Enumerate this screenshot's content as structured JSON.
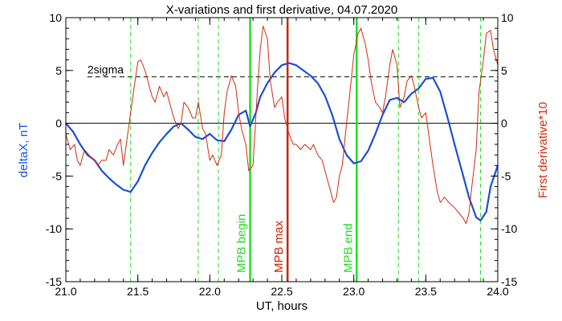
{
  "chart_data": {
    "type": "line",
    "title": "X-variations and first derivative, 04.07.2020",
    "xlabel": "UT, hours",
    "ylabel_left": "deltaX, nT",
    "ylabel_right": "First derivative*10",
    "xlim": [
      21.0,
      24.0
    ],
    "ylim": [
      -15,
      10
    ],
    "x_ticks": [
      21.0,
      21.5,
      22.0,
      22.5,
      23.0,
      23.5,
      24.0
    ],
    "x_tick_labels": [
      "21.0",
      "21.5",
      "22.0",
      "22.5",
      "23.0",
      "23.5",
      "24.0"
    ],
    "y_ticks": [
      -15,
      -10,
      -5,
      0,
      5,
      10
    ],
    "y_tick_labels": [
      "-15",
      "-10",
      "-5",
      "0",
      "5",
      "10"
    ],
    "grid": false,
    "colors": {
      "deltaX": "#1a4fd6",
      "derivative": "#d42a0c",
      "mpb_boundary": "#22dd22",
      "mpb_max": "#cc2200",
      "axis_text": "#000000"
    },
    "sigma_line": {
      "label": "2sigma",
      "y": 4.4
    },
    "zero_line": {
      "y": 0
    },
    "dashed_verticals": {
      "x": [
        21.45,
        21.92,
        22.06,
        23.31,
        23.45,
        23.88
      ],
      "color": "#22dd22"
    },
    "event_lines": [
      {
        "x": 22.28,
        "label": "MPB begin",
        "color": "#22dd22"
      },
      {
        "x": 22.54,
        "label": "MPB max",
        "color": "#cc2200"
      },
      {
        "x": 23.02,
        "label": "MPB end",
        "color": "#22dd22"
      }
    ],
    "series": [
      {
        "key": "deltaX",
        "axis": "left",
        "x": [
          21.0,
          21.05,
          21.1,
          21.15,
          21.2,
          21.25,
          21.3,
          21.35,
          21.4,
          21.45,
          21.5,
          21.55,
          21.6,
          21.65,
          21.7,
          21.75,
          21.8,
          21.85,
          21.9,
          21.95,
          22.0,
          22.05,
          22.1,
          22.15,
          22.2,
          22.25,
          22.28,
          22.32,
          22.35,
          22.4,
          22.45,
          22.5,
          22.55,
          22.6,
          22.65,
          22.7,
          22.75,
          22.8,
          22.85,
          22.9,
          22.95,
          23.0,
          23.05,
          23.1,
          23.15,
          23.2,
          23.25,
          23.3,
          23.35,
          23.4,
          23.45,
          23.5,
          23.55,
          23.6,
          23.65,
          23.7,
          23.75,
          23.8,
          23.85,
          23.88,
          23.92,
          23.95,
          24.0
        ],
        "y": [
          0.0,
          -0.8,
          -2.0,
          -3.0,
          -3.5,
          -4.5,
          -5.2,
          -5.8,
          -6.3,
          -6.5,
          -5.5,
          -4.0,
          -2.8,
          -1.8,
          -1.0,
          -0.3,
          0.0,
          -0.6,
          -1.3,
          -1.5,
          -1.0,
          -1.6,
          -1.7,
          -0.6,
          0.8,
          1.2,
          -0.3,
          1.0,
          2.5,
          3.8,
          4.8,
          5.5,
          5.7,
          5.5,
          5.0,
          4.5,
          3.8,
          2.6,
          0.8,
          -1.5,
          -3.0,
          -3.8,
          -3.6,
          -2.6,
          -1.0,
          0.8,
          2.2,
          2.4,
          2.0,
          2.8,
          3.3,
          4.2,
          4.3,
          3.0,
          0.6,
          -2.0,
          -4.5,
          -7.0,
          -8.9,
          -9.2,
          -8.4,
          -6.0,
          -4.0
        ]
      },
      {
        "key": "derivative",
        "axis": "right",
        "x": [
          21.0,
          21.03,
          21.06,
          21.08,
          21.1,
          21.13,
          21.16,
          21.2,
          21.22,
          21.25,
          21.28,
          21.3,
          21.33,
          21.36,
          21.38,
          21.4,
          21.42,
          21.44,
          21.47,
          21.5,
          21.52,
          21.55,
          21.58,
          21.6,
          21.62,
          21.65,
          21.68,
          21.7,
          21.72,
          21.75,
          21.78,
          21.8,
          21.82,
          21.85,
          21.88,
          21.9,
          21.92,
          21.95,
          21.97,
          22.0,
          22.02,
          22.05,
          22.08,
          22.1,
          22.12,
          22.15,
          22.18,
          22.2,
          22.22,
          22.25,
          22.27,
          22.3,
          22.33,
          22.35,
          22.37,
          22.4,
          22.42,
          22.45,
          22.47,
          22.5,
          22.52,
          22.55,
          22.58,
          22.6,
          22.63,
          22.66,
          22.7,
          22.72,
          22.75,
          22.78,
          22.8,
          22.83,
          22.86,
          22.88,
          22.9,
          22.92,
          22.95,
          22.97,
          23.0,
          23.03,
          23.05,
          23.08,
          23.1,
          23.12,
          23.15,
          23.18,
          23.2,
          23.22,
          23.25,
          23.27,
          23.3,
          23.32,
          23.35,
          23.37,
          23.4,
          23.42,
          23.45,
          23.47,
          23.5,
          23.52,
          23.55,
          23.58,
          23.6,
          23.63,
          23.66,
          23.7,
          23.73,
          23.76,
          23.78,
          23.8,
          23.82,
          23.85,
          23.87,
          23.9,
          23.92,
          23.95,
          23.97,
          24.0
        ],
        "y": [
          -1.0,
          -2.5,
          -2.0,
          -3.5,
          -4.0,
          -2.5,
          -3.0,
          -3.5,
          -4.0,
          -3.5,
          -3.5,
          -2.5,
          -3.0,
          -2.0,
          -1.5,
          -4.0,
          -2.0,
          0.0,
          3.0,
          5.8,
          6.0,
          5.0,
          3.5,
          2.5,
          2.0,
          3.5,
          2.5,
          3.0,
          2.0,
          0.5,
          -0.5,
          0.0,
          2.0,
          1.5,
          0.5,
          0.5,
          2.0,
          -0.5,
          -1.0,
          -3.5,
          -3.0,
          -4.0,
          -3.0,
          1.0,
          3.0,
          4.5,
          3.5,
          1.0,
          -0.5,
          -2.0,
          -4.5,
          -4.0,
          3.0,
          7.0,
          9.2,
          8.0,
          4.0,
          1.5,
          2.0,
          2.5,
          0.5,
          -1.0,
          -2.0,
          -2.0,
          -2.5,
          -2.0,
          -2.5,
          -2.0,
          -3.0,
          -3.5,
          -4.5,
          -6.0,
          -7.5,
          -7.0,
          -5.0,
          -4.0,
          0.0,
          2.5,
          6.5,
          8.5,
          9.0,
          7.5,
          6.0,
          4.0,
          2.0,
          1.5,
          1.0,
          2.5,
          5.5,
          7.0,
          5.5,
          1.5,
          2.5,
          4.0,
          4.5,
          3.5,
          1.5,
          0.5,
          1.0,
          -1.0,
          -4.0,
          -6.5,
          -7.5,
          -7.0,
          -7.5,
          -8.0,
          -8.5,
          -9.0,
          -9.5,
          -8.5,
          -6.0,
          -2.5,
          3.0,
          6.0,
          8.5,
          8.8,
          7.0,
          5.5
        ]
      }
    ]
  }
}
